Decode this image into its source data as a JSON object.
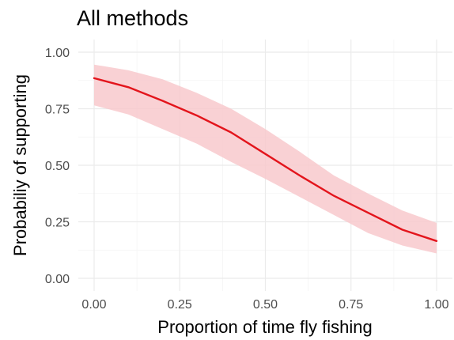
{
  "chart_data": {
    "type": "line",
    "title": "All methods",
    "xlabel": "Proportion of time fly fishing",
    "ylabel": "Probabiliy of supporting",
    "xlim": [
      0,
      1
    ],
    "ylim": [
      0,
      1
    ],
    "x_ticks": [
      0,
      0.25,
      0.5,
      0.75,
      1
    ],
    "x_tick_labels": [
      "0.00",
      "0.25",
      "0.50",
      "0.75",
      "1.00"
    ],
    "y_ticks": [
      0,
      0.25,
      0.5,
      0.75,
      1
    ],
    "y_tick_labels": [
      "0.00",
      "0.25",
      "0.50",
      "0.75",
      "1.00"
    ],
    "grid": true,
    "series": [
      {
        "x": [
          0,
          0.1,
          0.2,
          0.3,
          0.4,
          0.5,
          0.6,
          0.7,
          0.8,
          0.9,
          1.0
        ],
        "y": [
          0.885,
          0.845,
          0.785,
          0.72,
          0.645,
          0.55,
          0.455,
          0.365,
          0.29,
          0.215,
          0.165
        ],
        "lower": [
          0.765,
          0.725,
          0.66,
          0.595,
          0.515,
          0.44,
          0.36,
          0.28,
          0.2,
          0.145,
          0.11
        ],
        "upper": [
          0.945,
          0.92,
          0.88,
          0.82,
          0.75,
          0.66,
          0.56,
          0.455,
          0.375,
          0.3,
          0.245
        ],
        "color": "#e3151c",
        "band_color": "#f8c9cc"
      }
    ]
  }
}
